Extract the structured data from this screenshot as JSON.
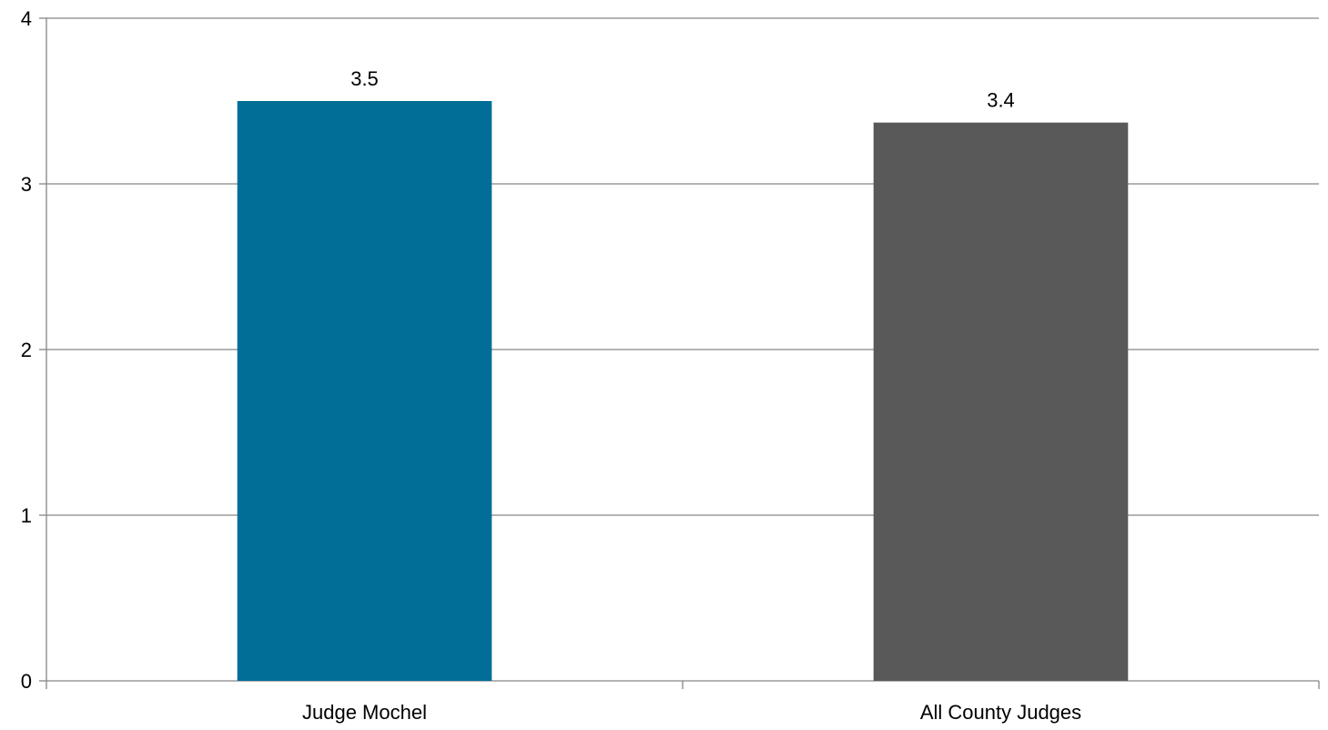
{
  "chart_data": {
    "type": "bar",
    "categories": [
      "Judge Mochel",
      "All County Judges"
    ],
    "values": [
      3.5,
      3.37
    ],
    "data_labels": [
      "3.5",
      "3.4"
    ],
    "colors": [
      "#006E96",
      "#595959"
    ],
    "yticks": [
      "0",
      "1",
      "2",
      "3",
      "4"
    ],
    "ylim": [
      0,
      4
    ],
    "grid": true,
    "legend": "none"
  }
}
